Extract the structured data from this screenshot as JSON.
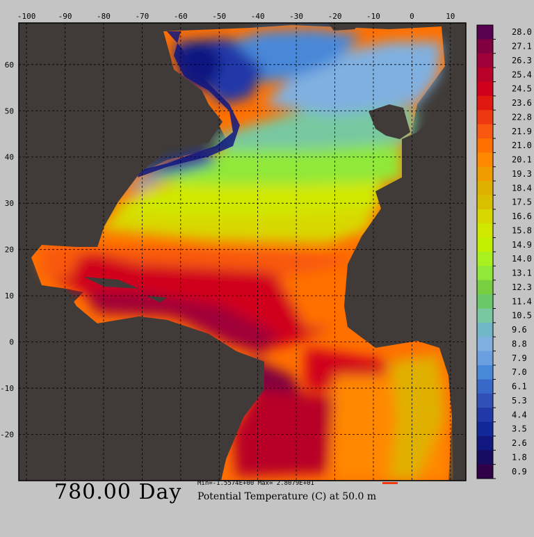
{
  "map": {
    "lon_ticks": [
      "-100",
      "-90",
      "-80",
      "-70",
      "-60",
      "-50",
      "-40",
      "-30",
      "-20",
      "-10",
      "0",
      "10"
    ],
    "lat_ticks": [
      "60",
      "50",
      "40",
      "30",
      "20",
      "10",
      "0",
      "-10",
      "-20"
    ],
    "lon_range": [
      -102,
      14
    ],
    "lat_range": [
      -30,
      69
    ],
    "land_color": "#403b38",
    "grid": "dashed"
  },
  "colorbar": {
    "labels": [
      "28.0",
      "27.1",
      "26.3",
      "25.4",
      "24.5",
      "23.6",
      "22.8",
      "21.9",
      "21.0",
      "20.1",
      "19.3",
      "18.4",
      "17.5",
      "16.6",
      "15.8",
      "14.9",
      "14.0",
      "13.1",
      "12.3",
      "11.4",
      "10.5",
      "9.6",
      "8.8",
      "7.9",
      "7.0",
      "6.1",
      "5.3",
      "4.4",
      "3.5",
      "2.6",
      "1.8",
      "0.9"
    ],
    "colors": [
      "#5a0050",
      "#800040",
      "#a00038",
      "#b80028",
      "#d0001c",
      "#e01810",
      "#ee3810",
      "#f85810",
      "#ff7000",
      "#ff8800",
      "#f09c00",
      "#e0b000",
      "#d8c000",
      "#d8d800",
      "#d0e800",
      "#c0f000",
      "#a8f020",
      "#90e838",
      "#78d040",
      "#6ac868",
      "#78c8a0",
      "#70b8c8",
      "#80b0e0",
      "#6aa0e0",
      "#4888d8",
      "#3868c8",
      "#3050b8",
      "#2038a8",
      "#102898",
      "#101880",
      "#180c60",
      "#300048"
    ]
  },
  "footer": {
    "time_label": "780.00 Day",
    "variable_label": "Potential Temperature (C) at 50.0 m",
    "minmax_label": "Min=-1.5574E+00  Max= 2.8079E+01"
  }
}
